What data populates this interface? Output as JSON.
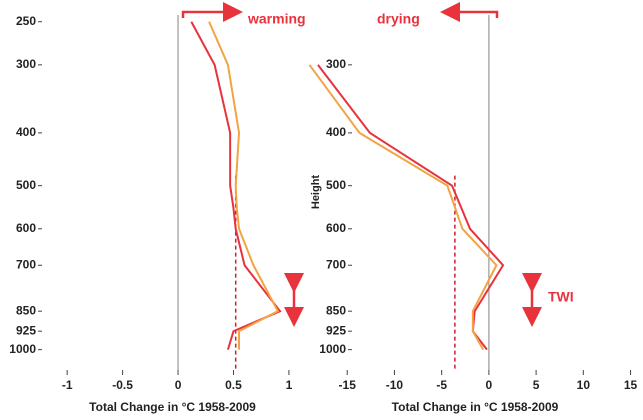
{
  "chart_data": [
    {
      "type": "line",
      "y_scale": "log",
      "xlabel": "Total Change in  °C 1958-2009",
      "annotation": "warming",
      "levels": [
        250,
        300,
        400,
        500,
        550,
        600,
        700,
        850,
        925,
        1000
      ],
      "series": [
        {
          "color": "#e8323c",
          "values": [
            0.12,
            0.33,
            0.47,
            0.47,
            0.5,
            0.52,
            0.6,
            0.92,
            0.5,
            0.45
          ]
        },
        {
          "color": "#f2a444",
          "values": [
            0.28,
            0.45,
            0.55,
            0.52,
            0.53,
            0.55,
            0.68,
            0.9,
            0.55,
            0.55
          ]
        }
      ],
      "reference_x": 0.52,
      "xlim": [
        -1.2,
        1.1
      ],
      "xticks": [
        -1,
        -0.5,
        0,
        0.5,
        1
      ],
      "ylim": [
        1090,
        243
      ],
      "yticks": [
        250,
        300,
        400,
        500,
        600,
        700,
        850,
        925,
        1000
      ]
    },
    {
      "type": "line",
      "y_scale": "log",
      "xlabel": "Total Change in  °C 1958-2009",
      "ylabel": "Height",
      "annotation": "drying",
      "twi_label": "TWI",
      "levels": [
        300,
        400,
        500,
        600,
        700,
        850,
        925,
        1000
      ],
      "series": [
        {
          "color": "#e8323c",
          "values": [
            -18.1,
            -12.6,
            -3.9,
            -2,
            1.5,
            -1.5,
            -1.7,
            -0.2
          ]
        },
        {
          "color": "#f2a444",
          "values": [
            -19,
            -13.7,
            -4.4,
            -2.8,
            0.8,
            -1.7,
            -1.7,
            -0.6
          ]
        }
      ],
      "reference_x": -3.6,
      "xlim": [
        -20,
        16
      ],
      "xticks": [
        -15,
        -10,
        -5,
        0,
        5,
        10,
        15
      ],
      "ylim": [
        1090,
        243
      ],
      "yticks": [
        300,
        400,
        500,
        600,
        700,
        850,
        925,
        1000
      ]
    }
  ]
}
